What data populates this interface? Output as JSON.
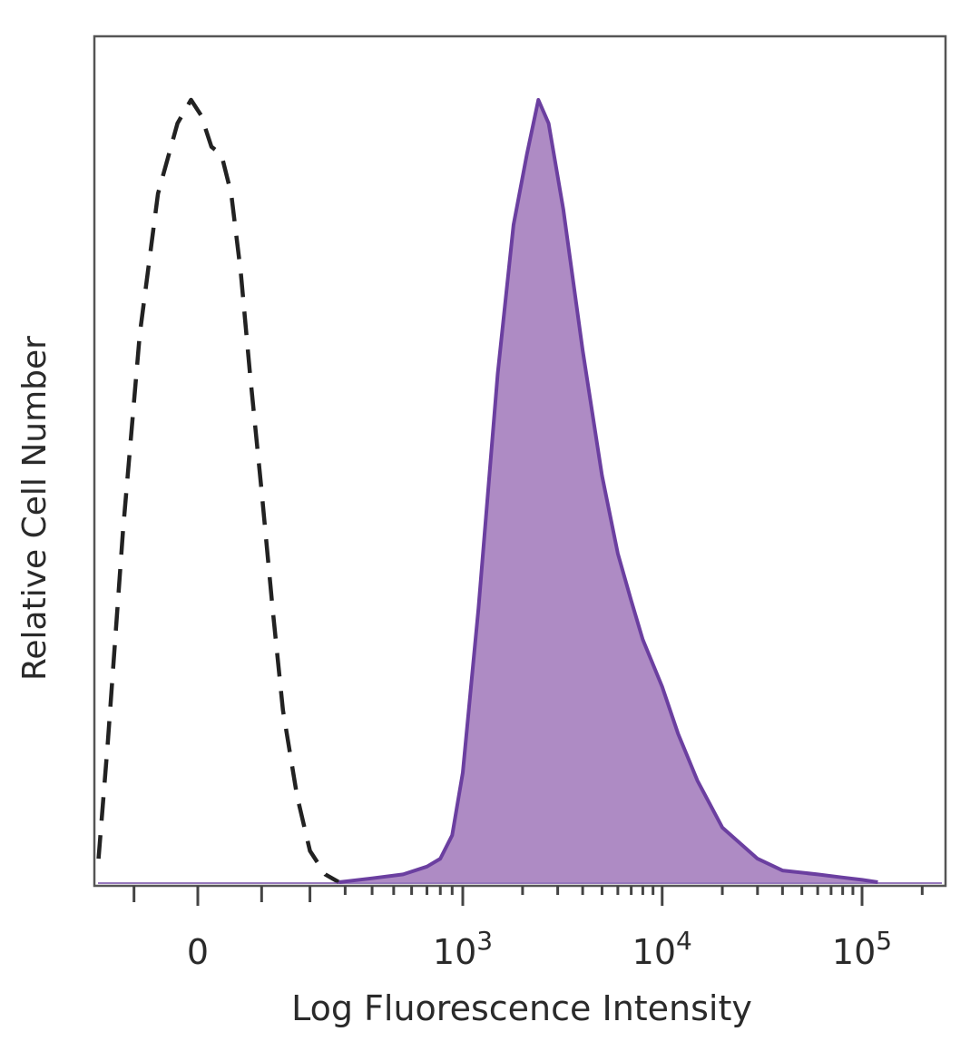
{
  "chart_data": {
    "type": "area",
    "title": "",
    "xlabel": "Log Fluorescence Intensity",
    "ylabel": "Relative Cell Number",
    "x_scale": "biexponential",
    "x_ticks": [
      {
        "value": 0,
        "base": "0",
        "exp": ""
      },
      {
        "value": 1000,
        "base": "10",
        "exp": "3"
      },
      {
        "value": 10000,
        "base": "10",
        "exp": "4"
      },
      {
        "value": 100000,
        "base": "10",
        "exp": "5"
      }
    ],
    "xlim": [
      -300,
      250000
    ],
    "ylim": [
      0,
      100
    ],
    "y_ticks_shown": false,
    "grid": false,
    "legend": "none",
    "colors": {
      "stained_fill": "#ae8bc4",
      "stained_line": "#6b3fa0",
      "control_line": "#222222",
      "axis": "#444444"
    },
    "series": [
      {
        "style": "dashed-outline",
        "color": "#222222",
        "x": [
          -170,
          -150,
          -120,
          -90,
          -60,
          -30,
          -10,
          5,
          20,
          35,
          50,
          65,
          80,
          100,
          120,
          140,
          170,
          200,
          240,
          280
        ],
        "y": [
          3,
          18,
          45,
          70,
          88,
          97,
          100,
          98,
          94,
          93,
          88,
          78,
          65,
          50,
          35,
          22,
          11,
          4,
          1,
          0
        ]
      },
      {
        "style": "filled",
        "color": "#ae8bc4",
        "line_color": "#6b3fa0",
        "x": [
          280,
          400,
          550,
          700,
          800,
          900,
          1000,
          1200,
          1500,
          1800,
          2100,
          2400,
          2700,
          3200,
          4000,
          5000,
          6000,
          7000,
          8000,
          10000,
          12000,
          15000,
          20000,
          30000,
          40000,
          60000,
          80000,
          100000,
          120000
        ],
        "y": [
          0,
          0.5,
          1,
          2,
          3,
          6,
          14,
          35,
          65,
          84,
          93,
          100,
          97,
          86,
          68,
          52,
          42,
          36,
          31,
          25,
          19,
          13,
          7,
          3,
          1.5,
          1,
          0.6,
          0.3,
          0
        ]
      }
    ]
  }
}
